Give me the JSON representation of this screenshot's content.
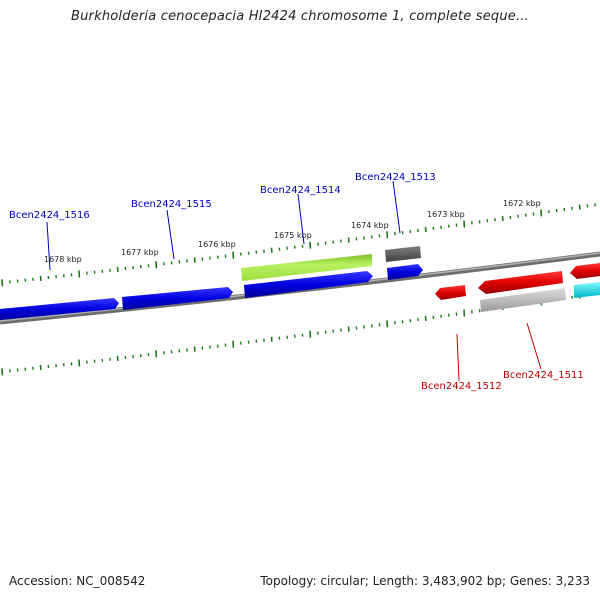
{
  "title": "Burkholderia cenocepacia HI2424 chromosome 1, complete seque...",
  "footer": {
    "accession": "Accession: NC_008542",
    "summary": "Topology: circular; Length: 3,483,902 bp; Genes: 3,233"
  },
  "colors": {
    "forward": "#0000e0",
    "reverse": "#e00000",
    "tick": "#1a7a1a",
    "backbone": "#8a8a8a",
    "highlight": "#a6e84a",
    "grey_feature": "#606060",
    "light_grey_feature": "#b8b8b8",
    "cyan_feature": "#00e5ee"
  },
  "ticks": [
    {
      "label": "1678 kbp"
    },
    {
      "label": "1677 kbp"
    },
    {
      "label": "1676 kbp"
    },
    {
      "label": "1675 kbp"
    },
    {
      "label": "1674 kbp"
    },
    {
      "label": "1673 kbp"
    },
    {
      "label": "1672 kbp"
    }
  ],
  "gene_labels": [
    {
      "text": "Bcen2424_1516",
      "strand": "forward"
    },
    {
      "text": "Bcen2424_1515",
      "strand": "forward"
    },
    {
      "text": "Bcen2424_1514",
      "strand": "forward"
    },
    {
      "text": "Bcen2424_1513",
      "strand": "forward"
    },
    {
      "text": "Bcen2424_1512",
      "strand": "reverse"
    },
    {
      "text": "Bcen2424_1511",
      "strand": "reverse"
    }
  ]
}
